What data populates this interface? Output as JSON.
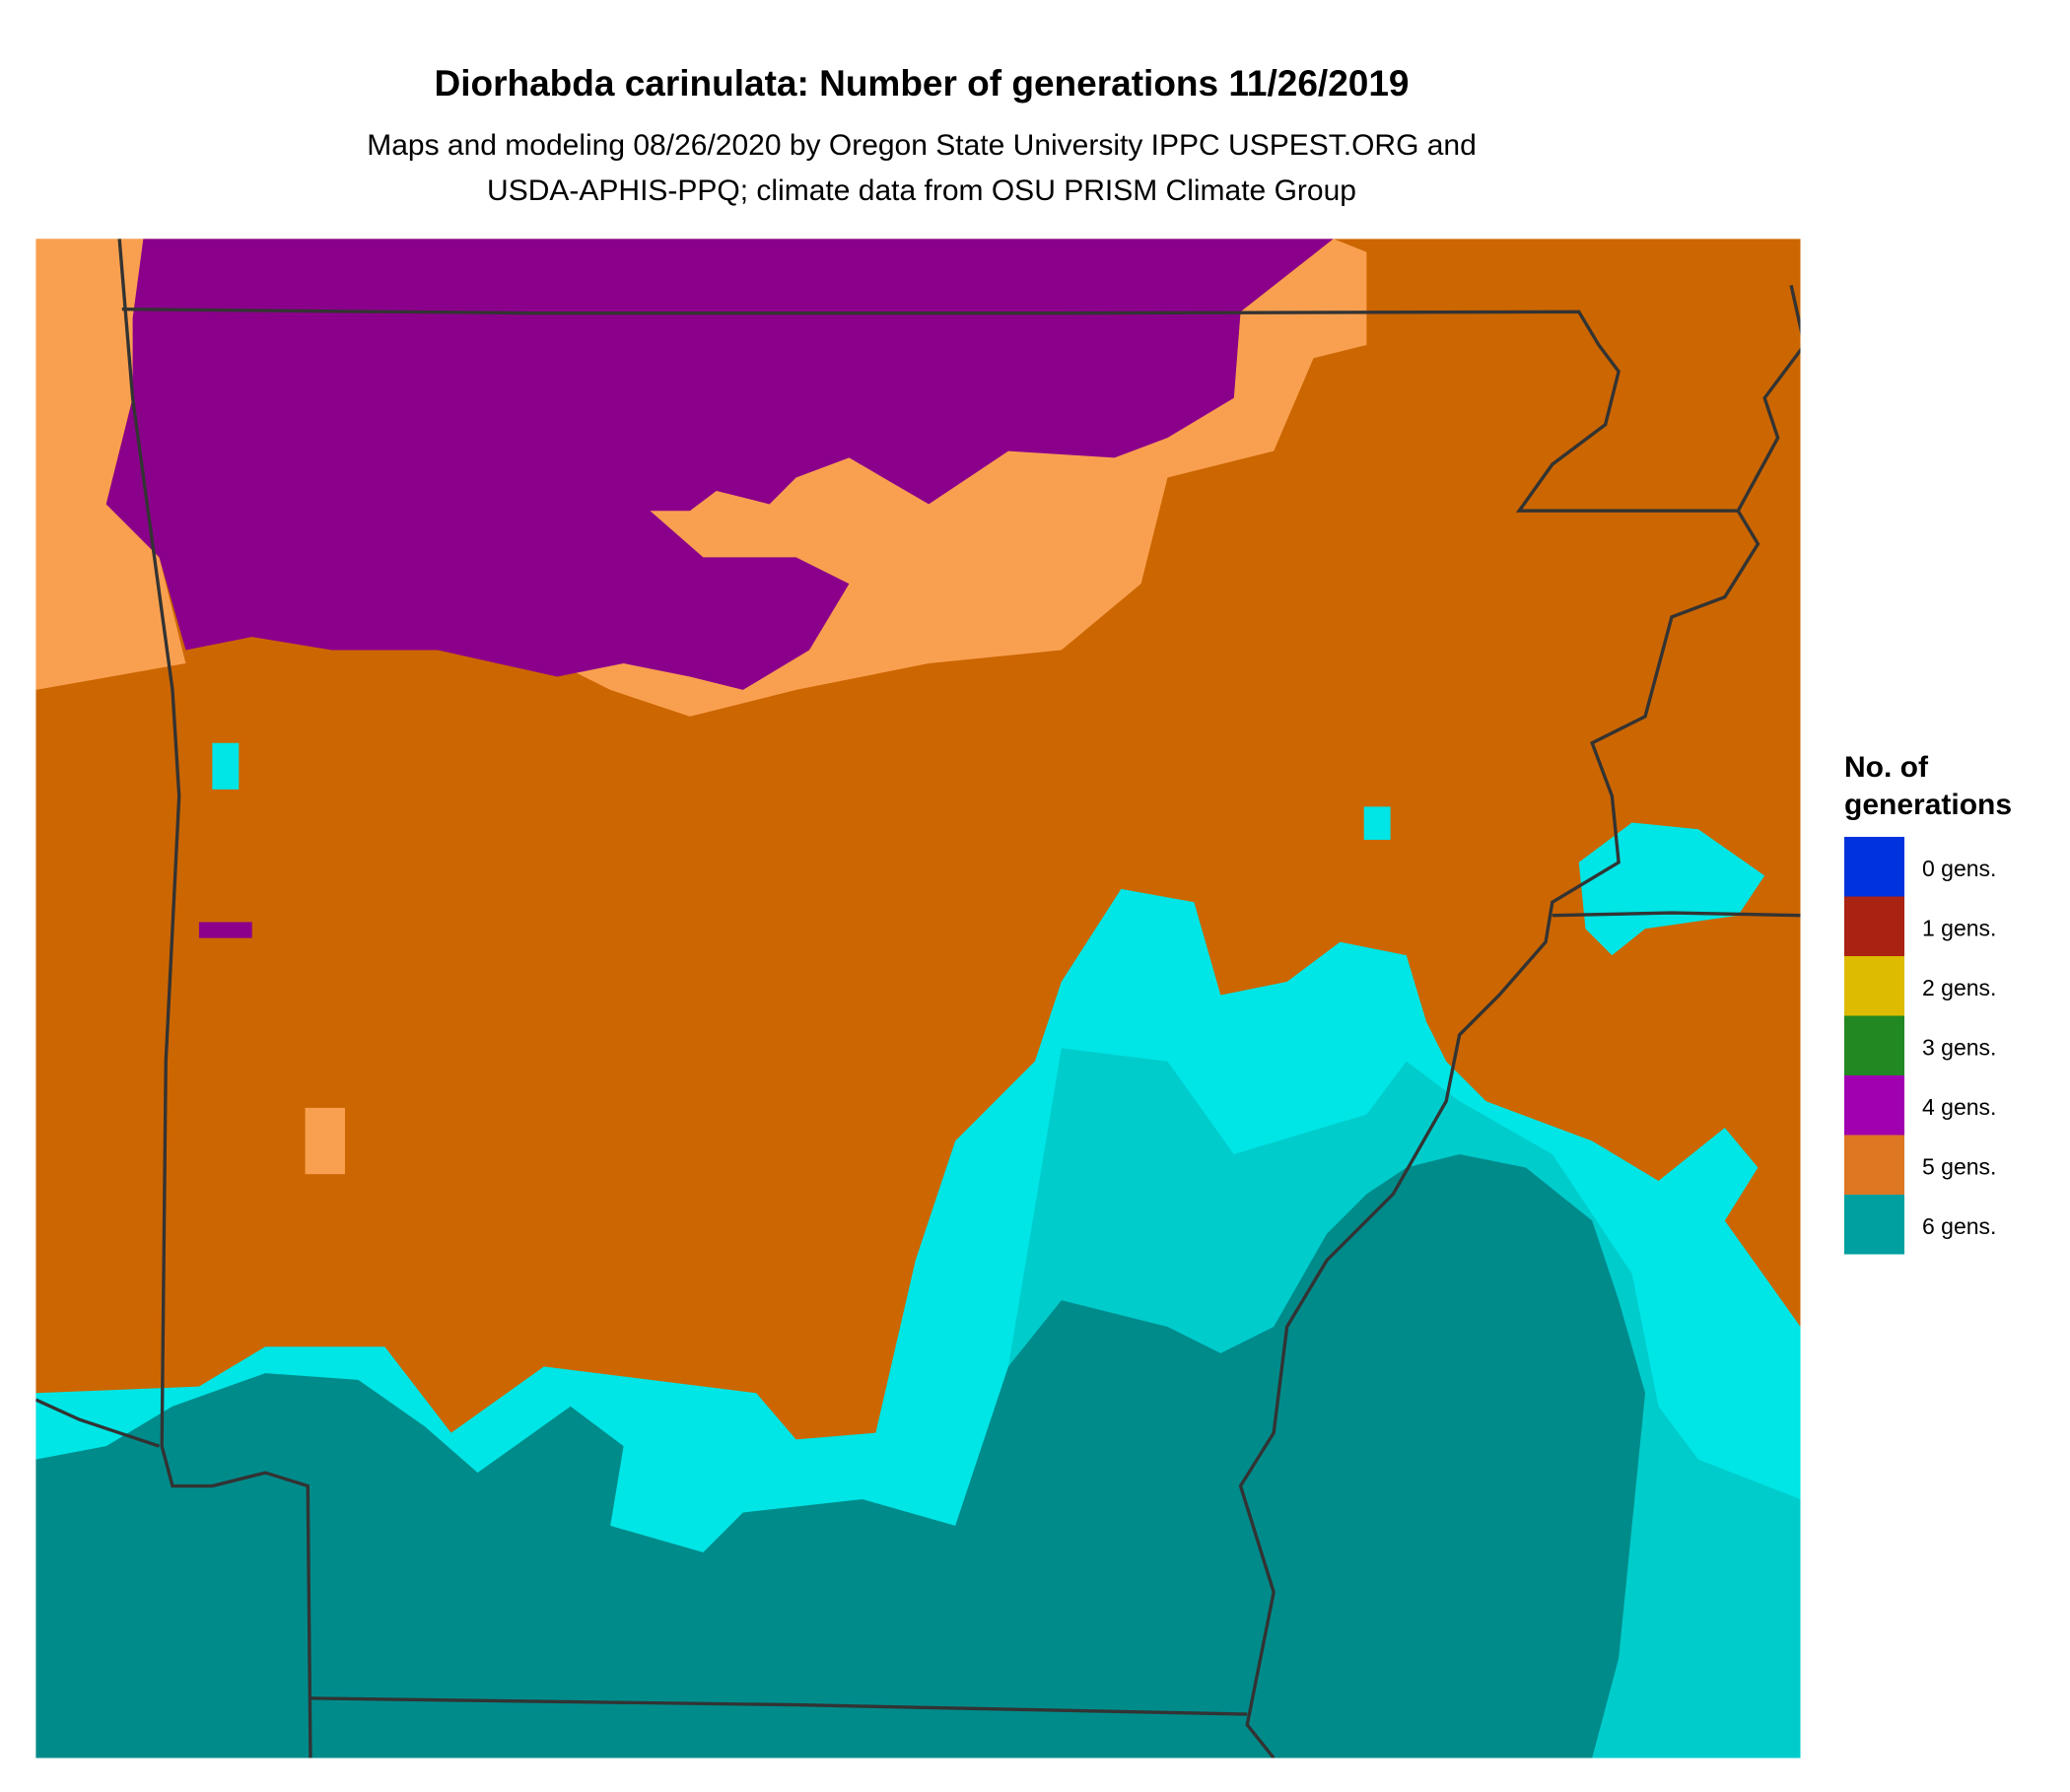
{
  "header": {
    "title": "Diorhabda carinulata: Number of generations 11/26/2019",
    "subtitle": [
      "Maps and modeling 08/26/2020 by Oregon State University IPPC USPEST.ORG and",
      "USDA-APHIS-PPQ; climate data from OSU PRISM Climate Group"
    ]
  },
  "legend": {
    "title": [
      "No. of",
      "generations"
    ],
    "items": [
      {
        "label": "0 gens.",
        "color": "#0033dd"
      },
      {
        "label": "1 gens.",
        "color": "#aa2211"
      },
      {
        "label": "2 gens.",
        "color": "#ddbb00"
      },
      {
        "label": "3 gens.",
        "color": "#228822"
      },
      {
        "label": "4 gens.",
        "color": "#a000b0"
      },
      {
        "label": "5 gens.",
        "color": "#dd7722"
      },
      {
        "label": "6 gens.",
        "color": "#00a0a0"
      }
    ]
  }
}
